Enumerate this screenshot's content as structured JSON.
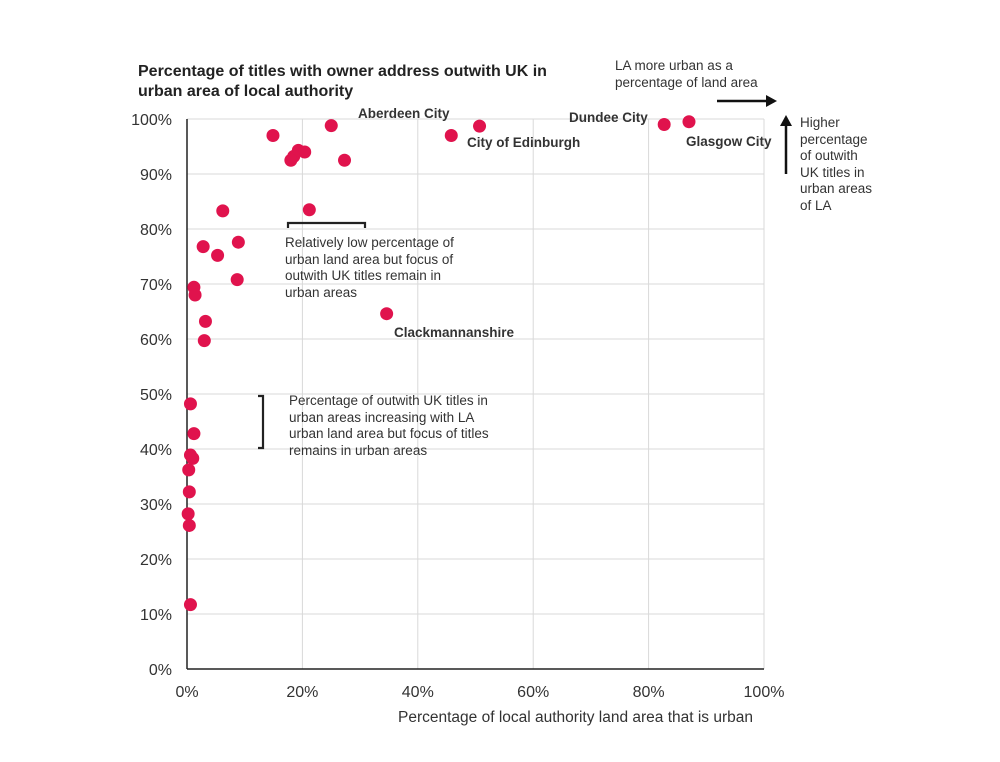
{
  "chart_data": {
    "type": "scatter",
    "title": "Percentage of titles with owner address outwith UK in urban area of local authority",
    "xlabel": "Percentage of local authority land area that is urban",
    "ylabel": "",
    "xlim": [
      0,
      100
    ],
    "ylim": [
      0,
      100
    ],
    "x_ticks": [
      "0%",
      "20%",
      "40%",
      "60%",
      "80%",
      "100%"
    ],
    "y_ticks": [
      "0%",
      "10%",
      "20%",
      "30%",
      "40%",
      "50%",
      "60%",
      "70%",
      "80%",
      "90%",
      "100%"
    ],
    "grid": true,
    "marker_color": "#e0134d",
    "points": [
      {
        "x": 87.0,
        "y": 99.5,
        "label": "Glasgow City"
      },
      {
        "x": 82.7,
        "y": 99.0,
        "label": "Dundee City"
      },
      {
        "x": 50.7,
        "y": 98.7,
        "label": ""
      },
      {
        "x": 45.8,
        "y": 97.0,
        "label": "City of Edinburgh"
      },
      {
        "x": 25.0,
        "y": 98.8,
        "label": "Aberdeen City"
      },
      {
        "x": 14.9,
        "y": 97.0,
        "label": ""
      },
      {
        "x": 19.3,
        "y": 94.3,
        "label": ""
      },
      {
        "x": 20.4,
        "y": 94.0,
        "label": ""
      },
      {
        "x": 18.5,
        "y": 93.2,
        "label": ""
      },
      {
        "x": 18.0,
        "y": 92.5,
        "label": ""
      },
      {
        "x": 27.3,
        "y": 92.5,
        "label": ""
      },
      {
        "x": 21.2,
        "y": 83.5,
        "label": ""
      },
      {
        "x": 6.2,
        "y": 83.3,
        "label": ""
      },
      {
        "x": 2.8,
        "y": 76.8,
        "label": ""
      },
      {
        "x": 8.9,
        "y": 77.6,
        "label": ""
      },
      {
        "x": 5.3,
        "y": 75.2,
        "label": ""
      },
      {
        "x": 8.7,
        "y": 70.8,
        "label": ""
      },
      {
        "x": 1.2,
        "y": 69.4,
        "label": ""
      },
      {
        "x": 1.4,
        "y": 68.0,
        "label": ""
      },
      {
        "x": 3.2,
        "y": 63.2,
        "label": ""
      },
      {
        "x": 3.0,
        "y": 59.7,
        "label": ""
      },
      {
        "x": 34.6,
        "y": 64.6,
        "label": "Clackmannanshire"
      },
      {
        "x": 0.6,
        "y": 48.2,
        "label": ""
      },
      {
        "x": 1.2,
        "y": 42.8,
        "label": ""
      },
      {
        "x": 0.6,
        "y": 38.9,
        "label": ""
      },
      {
        "x": 1.0,
        "y": 38.3,
        "label": ""
      },
      {
        "x": 0.3,
        "y": 36.2,
        "label": ""
      },
      {
        "x": 0.4,
        "y": 32.2,
        "label": ""
      },
      {
        "x": 0.2,
        "y": 28.2,
        "label": ""
      },
      {
        "x": 0.4,
        "y": 26.1,
        "label": ""
      },
      {
        "x": 0.6,
        "y": 11.7,
        "label": ""
      }
    ]
  },
  "annotations": {
    "low_urban_note": "Relatively low percentage of urban land area but focus of outwith UK titles remain in urban areas",
    "increasing_note": "Percentage of outwith UK titles in urban areas increasing with LA urban land area but focus of titles remains in urban areas",
    "x_arrow_note": "LA more urban as a percentage of land area",
    "y_arrow_note": "Higher percentage of outwith UK titles in urban areas of LA"
  }
}
